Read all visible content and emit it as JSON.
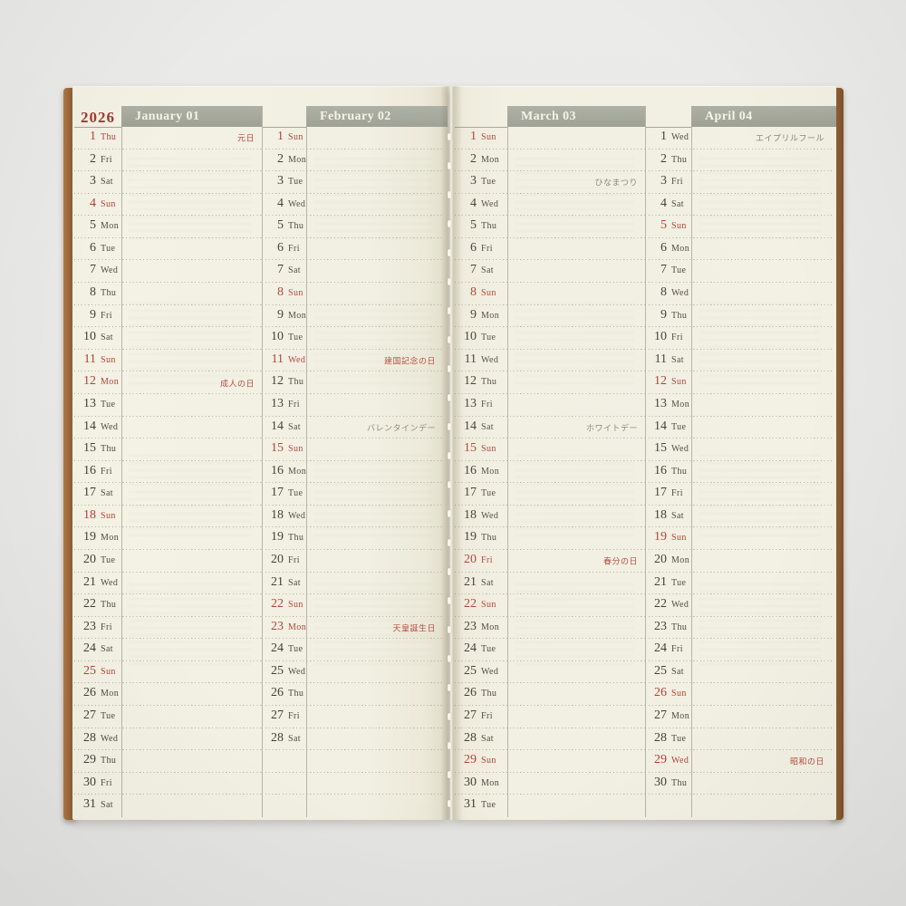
{
  "year": "2026",
  "colors": {
    "page_cream": "#f2f0e2",
    "banner_gray": "#a5a89b",
    "banner_text": "#f6f4e8",
    "year_red": "#a53a30",
    "date_red": "#ae4338",
    "date_black": "#443e34",
    "holiday_note_red": "#b54a3f",
    "note_gray": "#8d8674",
    "cover_brown": "#9a6538",
    "background_gray": "#e8e8e6"
  },
  "months": [
    {
      "label": "January 01",
      "days": [
        {
          "d": "1",
          "w": "Thu",
          "r": 1,
          "n": "元日",
          "nc": "red"
        },
        {
          "d": "2",
          "w": "Fri"
        },
        {
          "d": "3",
          "w": "Sat"
        },
        {
          "d": "4",
          "w": "Sun",
          "r": 1
        },
        {
          "d": "5",
          "w": "Mon"
        },
        {
          "d": "6",
          "w": "Tue"
        },
        {
          "d": "7",
          "w": "Wed"
        },
        {
          "d": "8",
          "w": "Thu"
        },
        {
          "d": "9",
          "w": "Fri"
        },
        {
          "d": "10",
          "w": "Sat"
        },
        {
          "d": "11",
          "w": "Sun",
          "r": 1
        },
        {
          "d": "12",
          "w": "Mon",
          "r": 1,
          "n": "成人の日",
          "nc": "red"
        },
        {
          "d": "13",
          "w": "Tue"
        },
        {
          "d": "14",
          "w": "Wed"
        },
        {
          "d": "15",
          "w": "Thu"
        },
        {
          "d": "16",
          "w": "Fri"
        },
        {
          "d": "17",
          "w": "Sat"
        },
        {
          "d": "18",
          "w": "Sun",
          "r": 1
        },
        {
          "d": "19",
          "w": "Mon"
        },
        {
          "d": "20",
          "w": "Tue"
        },
        {
          "d": "21",
          "w": "Wed"
        },
        {
          "d": "22",
          "w": "Thu"
        },
        {
          "d": "23",
          "w": "Fri"
        },
        {
          "d": "24",
          "w": "Sat"
        },
        {
          "d": "25",
          "w": "Sun",
          "r": 1
        },
        {
          "d": "26",
          "w": "Mon"
        },
        {
          "d": "27",
          "w": "Tue"
        },
        {
          "d": "28",
          "w": "Wed"
        },
        {
          "d": "29",
          "w": "Thu"
        },
        {
          "d": "30",
          "w": "Fri"
        },
        {
          "d": "31",
          "w": "Sat"
        }
      ]
    },
    {
      "label": "February 02",
      "days": [
        {
          "d": "1",
          "w": "Sun",
          "r": 1
        },
        {
          "d": "2",
          "w": "Mon"
        },
        {
          "d": "3",
          "w": "Tue"
        },
        {
          "d": "4",
          "w": "Wed"
        },
        {
          "d": "5",
          "w": "Thu"
        },
        {
          "d": "6",
          "w": "Fri"
        },
        {
          "d": "7",
          "w": "Sat"
        },
        {
          "d": "8",
          "w": "Sun",
          "r": 1
        },
        {
          "d": "9",
          "w": "Mon"
        },
        {
          "d": "10",
          "w": "Tue"
        },
        {
          "d": "11",
          "w": "Wed",
          "r": 1,
          "n": "建国記念の日",
          "nc": "red"
        },
        {
          "d": "12",
          "w": "Thu"
        },
        {
          "d": "13",
          "w": "Fri"
        },
        {
          "d": "14",
          "w": "Sat",
          "n": "バレンタインデー",
          "nc": "gray"
        },
        {
          "d": "15",
          "w": "Sun",
          "r": 1
        },
        {
          "d": "16",
          "w": "Mon"
        },
        {
          "d": "17",
          "w": "Tue"
        },
        {
          "d": "18",
          "w": "Wed"
        },
        {
          "d": "19",
          "w": "Thu"
        },
        {
          "d": "20",
          "w": "Fri"
        },
        {
          "d": "21",
          "w": "Sat"
        },
        {
          "d": "22",
          "w": "Sun",
          "r": 1
        },
        {
          "d": "23",
          "w": "Mon",
          "r": 1,
          "n": "天皇誕生日",
          "nc": "red"
        },
        {
          "d": "24",
          "w": "Tue"
        },
        {
          "d": "25",
          "w": "Wed"
        },
        {
          "d": "26",
          "w": "Thu"
        },
        {
          "d": "27",
          "w": "Fri"
        },
        {
          "d": "28",
          "w": "Sat"
        }
      ]
    },
    {
      "label": "March 03",
      "days": [
        {
          "d": "1",
          "w": "Sun",
          "r": 1
        },
        {
          "d": "2",
          "w": "Mon"
        },
        {
          "d": "3",
          "w": "Tue",
          "n": "ひなまつり",
          "nc": "gray"
        },
        {
          "d": "4",
          "w": "Wed"
        },
        {
          "d": "5",
          "w": "Thu"
        },
        {
          "d": "6",
          "w": "Fri"
        },
        {
          "d": "7",
          "w": "Sat"
        },
        {
          "d": "8",
          "w": "Sun",
          "r": 1
        },
        {
          "d": "9",
          "w": "Mon"
        },
        {
          "d": "10",
          "w": "Tue"
        },
        {
          "d": "11",
          "w": "Wed"
        },
        {
          "d": "12",
          "w": "Thu"
        },
        {
          "d": "13",
          "w": "Fri"
        },
        {
          "d": "14",
          "w": "Sat",
          "n": "ホワイトデー",
          "nc": "gray"
        },
        {
          "d": "15",
          "w": "Sun",
          "r": 1
        },
        {
          "d": "16",
          "w": "Mon"
        },
        {
          "d": "17",
          "w": "Tue"
        },
        {
          "d": "18",
          "w": "Wed"
        },
        {
          "d": "19",
          "w": "Thu"
        },
        {
          "d": "20",
          "w": "Fri",
          "r": 1,
          "n": "春分の日",
          "nc": "red"
        },
        {
          "d": "21",
          "w": "Sat"
        },
        {
          "d": "22",
          "w": "Sun",
          "r": 1
        },
        {
          "d": "23",
          "w": "Mon"
        },
        {
          "d": "24",
          "w": "Tue"
        },
        {
          "d": "25",
          "w": "Wed"
        },
        {
          "d": "26",
          "w": "Thu"
        },
        {
          "d": "27",
          "w": "Fri"
        },
        {
          "d": "28",
          "w": "Sat"
        },
        {
          "d": "29",
          "w": "Sun",
          "r": 1
        },
        {
          "d": "30",
          "w": "Mon"
        },
        {
          "d": "31",
          "w": "Tue"
        }
      ]
    },
    {
      "label": "April 04",
      "days": [
        {
          "d": "1",
          "w": "Wed",
          "n": "エイプリルフール",
          "nc": "gray"
        },
        {
          "d": "2",
          "w": "Thu"
        },
        {
          "d": "3",
          "w": "Fri"
        },
        {
          "d": "4",
          "w": "Sat"
        },
        {
          "d": "5",
          "w": "Sun",
          "r": 1
        },
        {
          "d": "6",
          "w": "Mon"
        },
        {
          "d": "7",
          "w": "Tue"
        },
        {
          "d": "8",
          "w": "Wed"
        },
        {
          "d": "9",
          "w": "Thu"
        },
        {
          "d": "10",
          "w": "Fri"
        },
        {
          "d": "11",
          "w": "Sat"
        },
        {
          "d": "12",
          "w": "Sun",
          "r": 1
        },
        {
          "d": "13",
          "w": "Mon"
        },
        {
          "d": "14",
          "w": "Tue"
        },
        {
          "d": "15",
          "w": "Wed"
        },
        {
          "d": "16",
          "w": "Thu"
        },
        {
          "d": "17",
          "w": "Fri"
        },
        {
          "d": "18",
          "w": "Sat"
        },
        {
          "d": "19",
          "w": "Sun",
          "r": 1
        },
        {
          "d": "20",
          "w": "Mon"
        },
        {
          "d": "21",
          "w": "Tue"
        },
        {
          "d": "22",
          "w": "Wed"
        },
        {
          "d": "23",
          "w": "Thu"
        },
        {
          "d": "24",
          "w": "Fri"
        },
        {
          "d": "25",
          "w": "Sat"
        },
        {
          "d": "26",
          "w": "Sun",
          "r": 1
        },
        {
          "d": "27",
          "w": "Mon"
        },
        {
          "d": "28",
          "w": "Tue"
        },
        {
          "d": "29",
          "w": "Wed",
          "r": 1,
          "n": "昭和の日",
          "nc": "red"
        },
        {
          "d": "30",
          "w": "Thu"
        }
      ]
    }
  ]
}
